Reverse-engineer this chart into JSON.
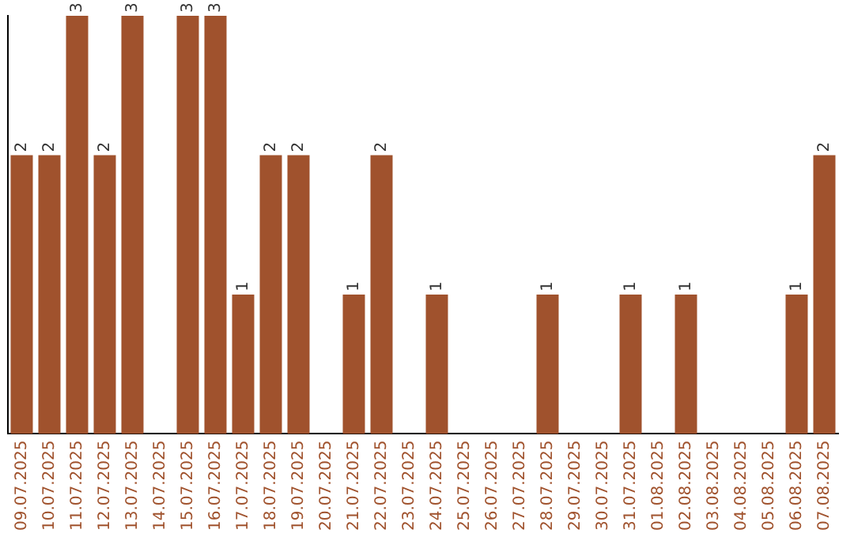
{
  "chart_data": {
    "type": "bar",
    "categories": [
      "09.07.2025",
      "10.07.2025",
      "11.07.2025",
      "12.07.2025",
      "13.07.2025",
      "14.07.2025",
      "15.07.2025",
      "16.07.2025",
      "17.07.2025",
      "18.07.2025",
      "19.07.2025",
      "20.07.2025",
      "21.07.2025",
      "22.07.2025",
      "23.07.2025",
      "24.07.2025",
      "25.07.2025",
      "26.07.2025",
      "27.07.2025",
      "28.07.2025",
      "29.07.2025",
      "30.07.2025",
      "31.07.2025",
      "01.08.2025",
      "02.08.2025",
      "03.08.2025",
      "04.08.2025",
      "05.08.2025",
      "06.08.2025",
      "07.08.2025"
    ],
    "values": [
      2,
      2,
      3,
      2,
      3,
      0,
      3,
      3,
      1,
      2,
      2,
      0,
      1,
      2,
      0,
      1,
      0,
      0,
      0,
      1,
      0,
      0,
      1,
      0,
      1,
      0,
      0,
      0,
      1,
      2
    ],
    "value_labels": [
      "2",
      "2",
      "3",
      "2",
      "3",
      null,
      "3",
      "3",
      "1",
      "2",
      "2",
      null,
      "1",
      "2",
      null,
      "1",
      null,
      null,
      null,
      "1",
      null,
      null,
      "1",
      null,
      "1",
      null,
      null,
      null,
      "1",
      "2"
    ],
    "color": "#a0522d",
    "grid": false,
    "legend": false
  }
}
